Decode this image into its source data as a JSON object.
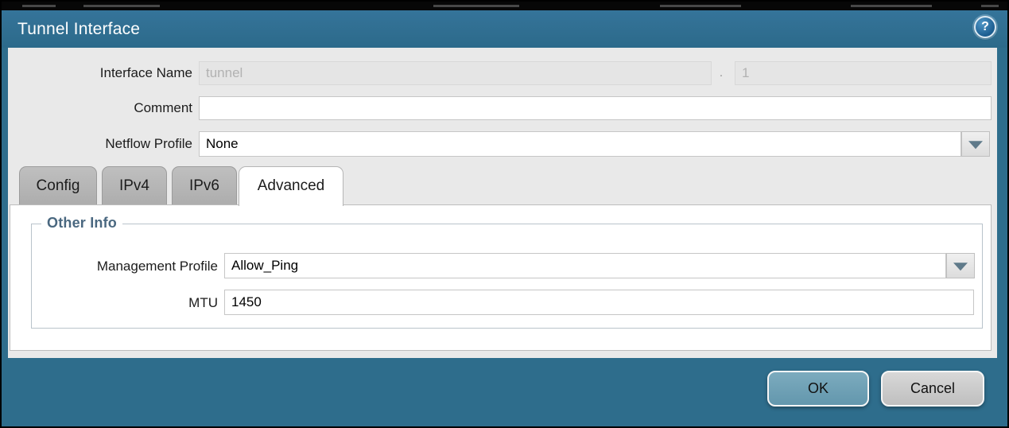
{
  "dialog": {
    "title": "Tunnel Interface",
    "help_glyph": "?",
    "fields": {
      "interface_name": {
        "label": "Interface Name",
        "value": "tunnel",
        "separator": ".",
        "suffix_value": "1",
        "disabled": true
      },
      "comment": {
        "label": "Comment",
        "value": ""
      },
      "netflow_profile": {
        "label": "Netflow Profile",
        "value": "None"
      }
    },
    "tabs": [
      {
        "label": "Config",
        "active": false
      },
      {
        "label": "IPv4",
        "active": false
      },
      {
        "label": "IPv6",
        "active": false
      },
      {
        "label": "Advanced",
        "active": true
      }
    ],
    "advanced": {
      "section_title": "Other Info",
      "fields": {
        "management_profile": {
          "label": "Management Profile",
          "value": "Allow_Ping"
        },
        "mtu": {
          "label": "MTU",
          "value": "1450"
        }
      }
    },
    "footer": {
      "ok": "OK",
      "cancel": "Cancel"
    },
    "colors": {
      "titlebar_teal": "#2e6d8c",
      "ok_button": "#6fa3b7",
      "cancel_button": "#c9c9c9",
      "section_title": "#4a6880",
      "dropdown_arrow": "#5f7a8a"
    }
  }
}
